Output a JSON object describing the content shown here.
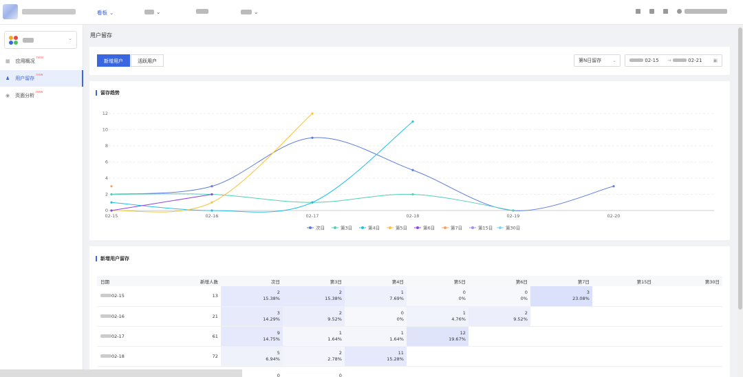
{
  "header": {
    "nav": [
      {
        "label": "看板",
        "active": true
      },
      {
        "label": "",
        "active": false
      },
      {
        "label": "",
        "active": false
      },
      {
        "label": "",
        "active": false
      }
    ]
  },
  "sidebar": {
    "app_name": "",
    "items": [
      {
        "label": "应用概况",
        "badge": "new",
        "active": false
      },
      {
        "label": "用户留存",
        "badge": "new",
        "active": true
      },
      {
        "label": "页面分析",
        "badge": "new",
        "active": false
      }
    ]
  },
  "page": {
    "title": "用户留存"
  },
  "filters": {
    "tabs": [
      "新增用户",
      "活跃用户"
    ],
    "active_tab": "新增用户",
    "mode": "第N日留存",
    "date_start": "02-15",
    "date_sep": "→",
    "date_end": "02-21"
  },
  "trend": {
    "title": "留存趋势"
  },
  "chart_data": {
    "type": "line",
    "categories": [
      "02-15",
      "02-16",
      "02-17",
      "02-18",
      "02-19",
      "02-20"
    ],
    "ylim": [
      0,
      12
    ],
    "yticks": [
      0,
      2,
      4,
      6,
      8,
      10,
      12
    ],
    "grid": true,
    "legend_position": "bottom",
    "series": [
      {
        "name": "次日",
        "color": "#5b7be0",
        "values": [
          2,
          3,
          9,
          5,
          0,
          3
        ]
      },
      {
        "name": "第3日",
        "color": "#4fd1b5",
        "values": [
          2,
          2,
          1,
          2,
          0,
          null
        ]
      },
      {
        "name": "第4日",
        "color": "#1fc1e8",
        "values": [
          1,
          0,
          1,
          11,
          null,
          null
        ]
      },
      {
        "name": "第5日",
        "color": "#f9c23c",
        "values": [
          0,
          1,
          12,
          null,
          null,
          null
        ]
      },
      {
        "name": "第6日",
        "color": "#8e44e8",
        "values": [
          0,
          2,
          null,
          null,
          null,
          null
        ]
      },
      {
        "name": "第7日",
        "color": "#f5a25d",
        "values": [
          3,
          null,
          null,
          null,
          null,
          null
        ]
      },
      {
        "name": "第15日",
        "color": "#a78bfa",
        "values": [
          null,
          null,
          null,
          null,
          null,
          null
        ]
      },
      {
        "name": "第30日",
        "color": "#7dd3f5",
        "values": [
          null,
          null,
          null,
          null,
          null,
          null
        ]
      }
    ]
  },
  "retention": {
    "title": "新增用户留存",
    "columns": [
      "日期",
      "新增人数",
      "次日",
      "第3日",
      "第4日",
      "第5日",
      "第6日",
      "第7日",
      "第15日",
      "第30日"
    ],
    "rows": [
      {
        "date": "02-15",
        "count": "13",
        "cells": [
          [
            "2",
            "15.38%"
          ],
          [
            "2",
            "15.38%"
          ],
          [
            "1",
            "7.69%"
          ],
          [
            "0",
            "0%"
          ],
          [
            "0",
            "0%"
          ],
          [
            "3",
            "23.08%"
          ]
        ]
      },
      {
        "date": "02-16",
        "count": "21",
        "cells": [
          [
            "3",
            "14.29%"
          ],
          [
            "2",
            "9.52%"
          ],
          [
            "0",
            "0%"
          ],
          [
            "1",
            "4.76%"
          ],
          [
            "2",
            "9.52%"
          ]
        ]
      },
      {
        "date": "02-17",
        "count": "61",
        "cells": [
          [
            "9",
            "14.75%"
          ],
          [
            "1",
            "1.64%"
          ],
          [
            "1",
            "1.64%"
          ],
          [
            "12",
            "19.67%"
          ]
        ]
      },
      {
        "date": "02-18",
        "count": "72",
        "cells": [
          [
            "5",
            "6.94%"
          ],
          [
            "2",
            "2.78%"
          ],
          [
            "11",
            "15.28%"
          ]
        ]
      },
      {
        "date": "",
        "count": "",
        "cells": [
          [
            "0",
            ""
          ],
          [
            "0",
            ""
          ]
        ]
      }
    ]
  }
}
